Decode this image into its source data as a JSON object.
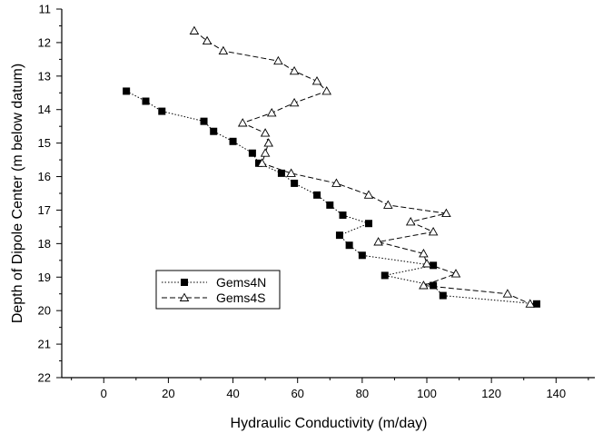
{
  "chart_data": {
    "type": "line",
    "xlabel": "Hydraulic Conductivity (m/day)",
    "ylabel": "Depth of Dipole Center (m below datum)",
    "xlim": [
      -13,
      152
    ],
    "ylim": [
      22,
      11
    ],
    "y_inverted": true,
    "xticks": [
      0,
      20,
      40,
      60,
      80,
      100,
      120,
      140
    ],
    "yticks": [
      11,
      12,
      13,
      14,
      15,
      16,
      17,
      18,
      19,
      20,
      21,
      22
    ],
    "grid": false,
    "legend_position": "lower-left",
    "series": [
      {
        "name": "Gems4N",
        "marker": "filled-square",
        "line_style": "dotted",
        "points": [
          [
            7,
            13.45
          ],
          [
            13,
            13.75
          ],
          [
            18,
            14.05
          ],
          [
            31,
            14.35
          ],
          [
            34,
            14.65
          ],
          [
            40,
            14.95
          ],
          [
            46,
            15.3
          ],
          [
            48,
            15.6
          ],
          [
            55,
            15.9
          ],
          [
            59,
            16.2
          ],
          [
            66,
            16.55
          ],
          [
            70,
            16.85
          ],
          [
            74,
            17.15
          ],
          [
            82,
            17.4
          ],
          [
            73,
            17.75
          ],
          [
            76,
            18.05
          ],
          [
            80,
            18.35
          ],
          [
            102,
            18.65
          ],
          [
            87,
            18.95
          ],
          [
            102,
            19.25
          ],
          [
            105,
            19.55
          ],
          [
            134,
            19.8
          ]
        ]
      },
      {
        "name": "Gems4S",
        "marker": "open-triangle",
        "line_style": "dashed",
        "points": [
          [
            28,
            11.65
          ],
          [
            32,
            11.95
          ],
          [
            37,
            12.25
          ],
          [
            54,
            12.55
          ],
          [
            59,
            12.85
          ],
          [
            66,
            13.15
          ],
          [
            69,
            13.45
          ],
          [
            59,
            13.8
          ],
          [
            52,
            14.1
          ],
          [
            43,
            14.4
          ],
          [
            50,
            14.7
          ],
          [
            51,
            15.0
          ],
          [
            50,
            15.3
          ],
          [
            49,
            15.6
          ],
          [
            58,
            15.9
          ],
          [
            72,
            16.2
          ],
          [
            82,
            16.55
          ],
          [
            88,
            16.85
          ],
          [
            106,
            17.1
          ],
          [
            95,
            17.35
          ],
          [
            102,
            17.65
          ],
          [
            85,
            17.95
          ],
          [
            99,
            18.3
          ],
          [
            100,
            18.6
          ],
          [
            109,
            18.9
          ],
          [
            99,
            19.25
          ],
          [
            125,
            19.5
          ],
          [
            132,
            19.8
          ]
        ]
      }
    ]
  }
}
